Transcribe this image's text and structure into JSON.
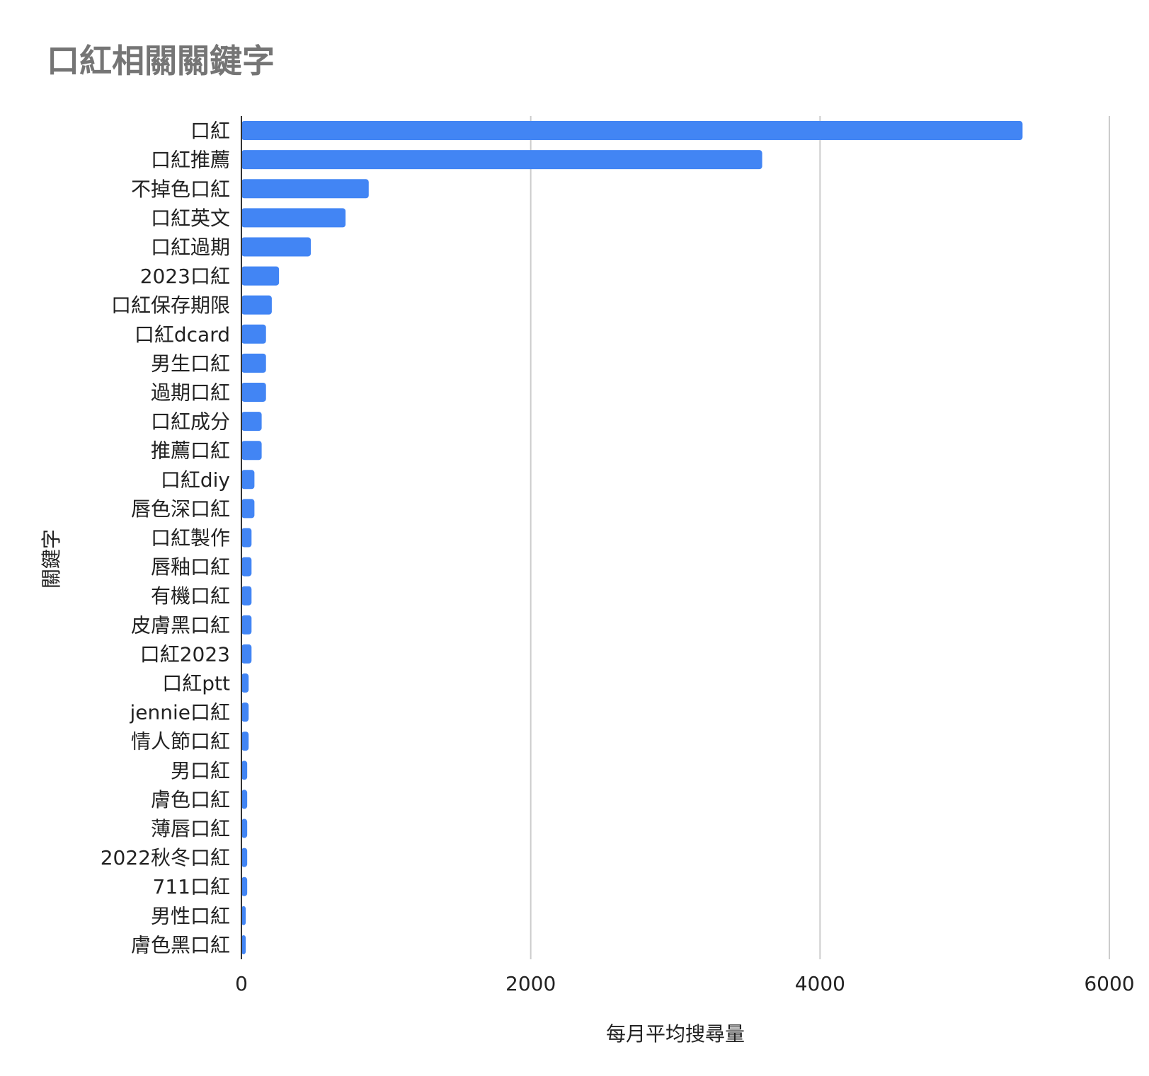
{
  "chart_data": {
    "type": "bar",
    "orientation": "horizontal",
    "title": "口紅相關關鍵字",
    "xlabel": "每月平均搜尋量",
    "ylabel": "關鍵字",
    "xlim": [
      0,
      6000
    ],
    "xticks": [
      "0",
      "2000",
      "4000",
      "6000"
    ],
    "grid": "vertical",
    "bar_color": "#4285F4",
    "categories": [
      "口紅",
      "口紅推薦",
      "不掉色口紅",
      "口紅英文",
      "口紅過期",
      "2023口紅",
      "口紅保存期限",
      "口紅dcard",
      "男生口紅",
      "過期口紅",
      "口紅成分",
      "推薦口紅",
      "口紅diy",
      "唇色深口紅",
      "口紅製作",
      "唇釉口紅",
      "有機口紅",
      "皮膚黑口紅",
      "口紅2023",
      "口紅ptt",
      "jennie口紅",
      "情人節口紅",
      "男口紅",
      "膚色口紅",
      "薄唇口紅",
      "2022秋冬口紅",
      "711口紅",
      "男性口紅",
      "膚色黑口紅"
    ],
    "values": [
      5400,
      3600,
      880,
      720,
      480,
      260,
      210,
      170,
      170,
      170,
      140,
      140,
      90,
      90,
      70,
      70,
      70,
      70,
      70,
      50,
      50,
      50,
      40,
      40,
      40,
      40,
      40,
      30,
      30
    ]
  }
}
